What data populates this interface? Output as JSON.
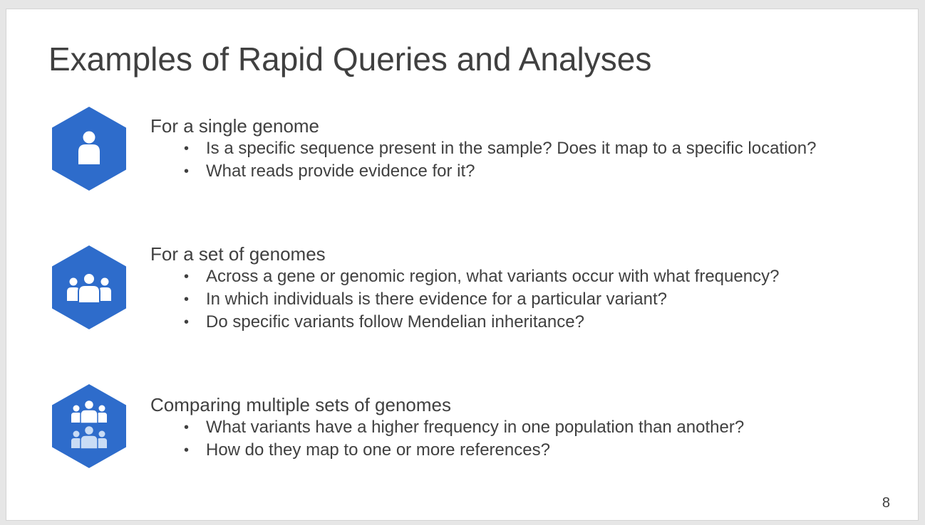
{
  "slide": {
    "title": "Examples of Rapid Queries and Analyses",
    "page_number": "8",
    "accent_color": "#2e6ccb",
    "text_color": "#404040",
    "sections": [
      {
        "icon": "single-person-icon",
        "heading": "For a single genome",
        "bullets": [
          "Is a specific sequence present in the sample? Does it map to a specific location?",
          "What reads provide evidence for it?"
        ]
      },
      {
        "icon": "group-icon",
        "heading": "For a set of genomes",
        "bullets": [
          "Across a gene or genomic region, what variants occur with what frequency?",
          "In which individuals is there evidence for a particular variant?",
          "Do specific variants follow Mendelian inheritance?"
        ]
      },
      {
        "icon": "multiple-groups-icon",
        "heading": "Comparing multiple sets of genomes",
        "bullets": [
          "What variants have a higher frequency in one population than another?",
          "How do they map to one or more references?"
        ]
      }
    ]
  }
}
